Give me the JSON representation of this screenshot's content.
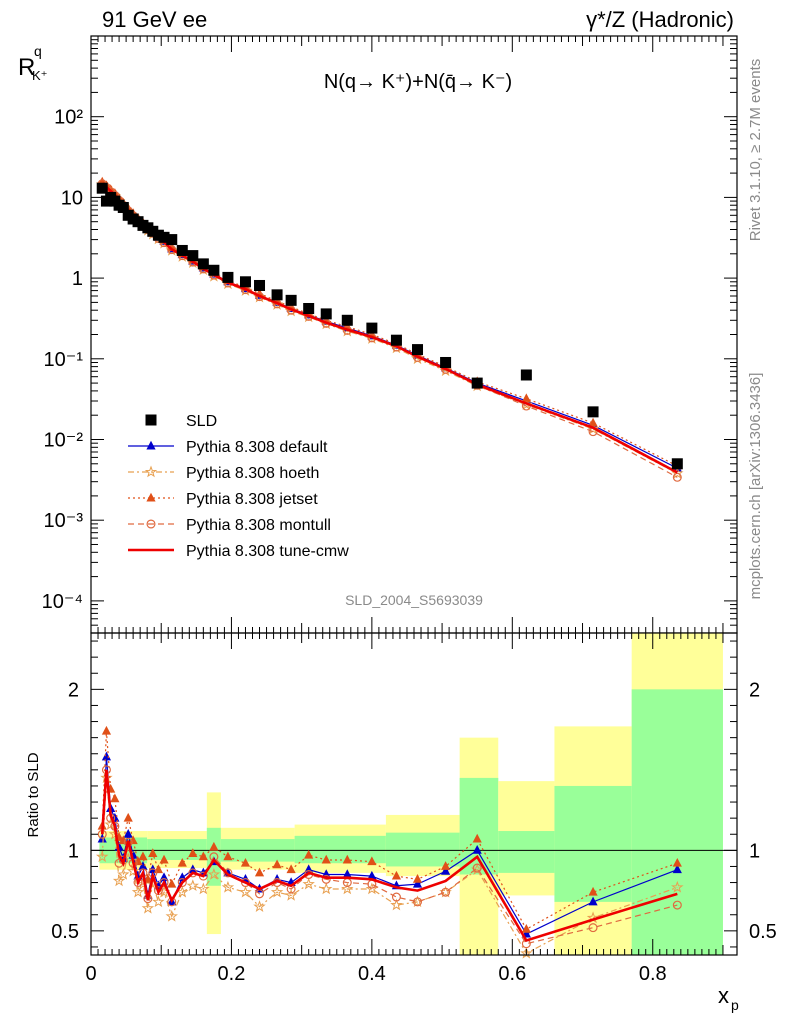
{
  "header": {
    "left": "91 GeV ee",
    "right": "γ*/Z (Hadronic)"
  },
  "side": {
    "rivet": "Rivet 3.1.10, ≥ 2.7M events",
    "source": "mcplots.cern.ch [arXiv:1306.3436]"
  },
  "chart_data": [
    {
      "type": "scatter",
      "panel": "main",
      "ylabel": "R",
      "ylabel_sup": "q",
      "ylabel_sub": "K⁺",
      "annotation": "N(q→ K⁺)+N(q̄→ K⁻)",
      "watermark": "SLD_2004_S5693039",
      "yscale": "log",
      "ylim": [
        4e-05,
        1000
      ],
      "xlim": [
        0,
        0.92
      ],
      "y_ticklabels": [
        "10⁻⁴",
        "10⁻³",
        "10⁻²",
        "10⁻¹",
        "1",
        "10",
        "10²"
      ],
      "legend_position": "bottom-left",
      "x": [
        0.016,
        0.022,
        0.028,
        0.034,
        0.04,
        0.046,
        0.053,
        0.06,
        0.067,
        0.074,
        0.081,
        0.088,
        0.096,
        0.104,
        0.115,
        0.13,
        0.145,
        0.16,
        0.175,
        0.195,
        0.22,
        0.24,
        0.265,
        0.285,
        0.31,
        0.335,
        0.365,
        0.4,
        0.435,
        0.465,
        0.505,
        0.55,
        0.62,
        0.715,
        0.835
      ],
      "series": [
        {
          "name": "SLD",
          "color": "#000000",
          "marker": "square",
          "values": [
            13,
            9,
            10,
            9,
            8,
            7.5,
            6,
            5.4,
            5,
            4.5,
            4.2,
            3.8,
            3.4,
            3.2,
            3.0,
            2.2,
            1.9,
            1.5,
            1.25,
            1.02,
            0.9,
            0.81,
            0.62,
            0.53,
            0.42,
            0.36,
            0.3,
            0.24,
            0.17,
            0.13,
            0.09,
            0.05,
            0.063,
            0.022,
            0.005
          ]
        },
        {
          "name": "Pythia 8.308 default",
          "color": "#0000cc",
          "marker": "triangle",
          "dash": "",
          "values": [
            15,
            13.5,
            12,
            10.8,
            9.4,
            8.2,
            7.0,
            6.1,
            5.3,
            4.7,
            4.1,
            3.7,
            3.2,
            2.85,
            2.3,
            1.95,
            1.62,
            1.33,
            1.12,
            0.9,
            0.74,
            0.61,
            0.5,
            0.42,
            0.35,
            0.29,
            0.24,
            0.192,
            0.147,
            0.11,
            0.077,
            0.05,
            0.03,
            0.015,
            0.0044
          ]
        },
        {
          "name": "Pythia 8.308 hoeth",
          "color": "#e8a050",
          "marker": "star",
          "dash": "6,3,2,3",
          "values": [
            14.5,
            13,
            11.6,
            10.4,
            9.0,
            7.9,
            6.7,
            5.8,
            5.05,
            4.45,
            3.9,
            3.5,
            3.05,
            2.7,
            2.2,
            1.85,
            1.55,
            1.27,
            1.05,
            0.85,
            0.7,
            0.58,
            0.47,
            0.39,
            0.33,
            0.27,
            0.22,
            0.178,
            0.136,
            0.1,
            0.071,
            0.046,
            0.027,
            0.0135,
            0.0038
          ]
        },
        {
          "name": "Pythia 8.308 jetset",
          "color": "#e05018",
          "marker": "triangle",
          "dash": "2,3",
          "values": [
            15.5,
            14,
            12.5,
            11.2,
            9.7,
            8.5,
            7.3,
            6.3,
            5.5,
            4.85,
            4.25,
            3.8,
            3.3,
            2.95,
            2.4,
            2.0,
            1.68,
            1.38,
            1.16,
            0.93,
            0.77,
            0.64,
            0.52,
            0.44,
            0.36,
            0.3,
            0.25,
            0.2,
            0.153,
            0.114,
            0.08,
            0.052,
            0.032,
            0.016,
            0.0047
          ]
        },
        {
          "name": "Pythia 8.308 montull",
          "color": "#e06a40",
          "marker": "circle",
          "dash": "6,4",
          "values": [
            14.8,
            13.3,
            11.8,
            10.6,
            9.2,
            8.0,
            6.85,
            5.95,
            5.15,
            4.55,
            4.0,
            3.6,
            3.1,
            2.75,
            2.25,
            1.9,
            1.58,
            1.3,
            1.09,
            0.87,
            0.72,
            0.59,
            0.48,
            0.4,
            0.335,
            0.275,
            0.225,
            0.182,
            0.14,
            0.104,
            0.074,
            0.047,
            0.026,
            0.0125,
            0.0034
          ]
        },
        {
          "name": "Pythia 8.308 tune-cmw",
          "color": "#ee0000",
          "marker": "none",
          "dash": "",
          "width": 2.6,
          "values": [
            15,
            13.4,
            12,
            10.7,
            9.3,
            8.1,
            6.95,
            6.05,
            5.25,
            4.65,
            4.05,
            3.65,
            3.15,
            2.8,
            2.27,
            1.92,
            1.6,
            1.31,
            1.1,
            0.88,
            0.73,
            0.6,
            0.49,
            0.41,
            0.34,
            0.28,
            0.23,
            0.186,
            0.143,
            0.106,
            0.075,
            0.048,
            0.028,
            0.014,
            0.0039
          ]
        }
      ]
    },
    {
      "type": "line",
      "panel": "ratio",
      "ylabel": "Ratio to SLD",
      "xlabel": "x",
      "xlabel_sub": "p",
      "ylim": [
        0.35,
        2.35
      ],
      "y_ticklabels": [
        "0.5",
        "1",
        "2"
      ],
      "x_ticklabels": [
        "0",
        "0.2",
        "0.4",
        "0.6",
        "0.8"
      ],
      "x": [
        0.016,
        0.022,
        0.028,
        0.034,
        0.04,
        0.046,
        0.053,
        0.06,
        0.067,
        0.074,
        0.081,
        0.088,
        0.096,
        0.104,
        0.115,
        0.13,
        0.145,
        0.16,
        0.175,
        0.195,
        0.22,
        0.24,
        0.265,
        0.285,
        0.31,
        0.335,
        0.365,
        0.4,
        0.435,
        0.465,
        0.505,
        0.55,
        0.62,
        0.715,
        0.835
      ],
      "bands": [
        {
          "x0": 0.012,
          "x1": 0.08,
          "stat_lo": 0.92,
          "stat_hi": 1.08,
          "tot_lo": 0.88,
          "tot_hi": 1.12
        },
        {
          "x0": 0.08,
          "x1": 0.165,
          "stat_lo": 0.94,
          "stat_hi": 1.07,
          "tot_lo": 0.89,
          "tot_hi": 1.12
        },
        {
          "x0": 0.165,
          "x1": 0.185,
          "stat_lo": 0.78,
          "stat_hi": 1.14,
          "tot_lo": 0.48,
          "tot_hi": 1.36
        },
        {
          "x0": 0.185,
          "x1": 0.29,
          "stat_lo": 0.93,
          "stat_hi": 1.07,
          "tot_lo": 0.88,
          "tot_hi": 1.14
        },
        {
          "x0": 0.29,
          "x1": 0.42,
          "stat_lo": 0.92,
          "stat_hi": 1.09,
          "tot_lo": 0.86,
          "tot_hi": 1.16
        },
        {
          "x0": 0.42,
          "x1": 0.525,
          "stat_lo": 0.9,
          "stat_hi": 1.11,
          "tot_lo": 0.84,
          "tot_hi": 1.22
        },
        {
          "x0": 0.525,
          "x1": 0.58,
          "stat_lo": 0.85,
          "stat_hi": 1.45,
          "tot_lo": 0.35,
          "tot_hi": 1.7
        },
        {
          "x0": 0.58,
          "x1": 0.66,
          "stat_lo": 0.86,
          "stat_hi": 1.12,
          "tot_lo": 0.72,
          "tot_hi": 1.43
        },
        {
          "x0": 0.66,
          "x1": 0.77,
          "stat_lo": 0.68,
          "stat_hi": 1.4,
          "tot_lo": 0.35,
          "tot_hi": 1.77
        },
        {
          "x0": 0.77,
          "x1": 0.9,
          "stat_lo": 0.35,
          "stat_hi": 2.0,
          "tot_lo": 0.35,
          "tot_hi": 2.35
        }
      ],
      "series": [
        {
          "name": "Pythia 8.308 default",
          "color": "#0000cc",
          "marker": "triangle",
          "dash": "",
          "values": [
            1.07,
            1.58,
            1.26,
            1.2,
            1.02,
            0.95,
            1.1,
            0.97,
            0.84,
            0.9,
            0.72,
            0.88,
            0.78,
            0.83,
            0.68,
            0.83,
            0.88,
            0.86,
            0.93,
            0.86,
            0.82,
            0.76,
            0.82,
            0.8,
            0.88,
            0.85,
            0.85,
            0.84,
            0.78,
            0.79,
            0.87,
            1.0,
            0.48,
            0.68,
            0.88
          ]
        },
        {
          "name": "Pythia 8.308 hoeth",
          "color": "#e8a050",
          "marker": "star",
          "dash": "6,3,2,3",
          "values": [
            0.96,
            1.45,
            1.16,
            1.1,
            0.81,
            0.85,
            0.98,
            0.87,
            0.74,
            0.79,
            0.64,
            0.79,
            0.68,
            0.74,
            0.59,
            0.74,
            0.78,
            0.76,
            0.85,
            0.77,
            0.74,
            0.65,
            0.74,
            0.72,
            0.79,
            0.76,
            0.76,
            0.76,
            0.66,
            0.68,
            0.74,
            0.88,
            0.36,
            0.58,
            0.77
          ]
        },
        {
          "name": "Pythia 8.308 jetset",
          "color": "#e05018",
          "marker": "triangle",
          "dash": "2,3",
          "values": [
            1.15,
            1.74,
            1.38,
            1.32,
            1.08,
            1.06,
            1.2,
            1.06,
            0.93,
            0.96,
            0.82,
            0.98,
            0.88,
            0.94,
            0.79,
            0.92,
            0.98,
            0.96,
            1.02,
            0.96,
            0.92,
            0.86,
            0.91,
            0.88,
            0.97,
            0.94,
            0.94,
            0.93,
            0.84,
            0.82,
            0.9,
            1.07,
            0.51,
            0.74,
            0.92
          ]
        },
        {
          "name": "Pythia 8.308 montull",
          "color": "#e06a40",
          "marker": "circle",
          "dash": "6,4",
          "values": [
            1.1,
            1.5,
            1.2,
            1.15,
            0.92,
            0.94,
            1.05,
            0.92,
            0.8,
            0.86,
            0.7,
            0.86,
            0.75,
            0.8,
            0.68,
            0.8,
            0.86,
            0.84,
            0.96,
            0.86,
            0.8,
            0.73,
            0.8,
            0.76,
            0.85,
            0.82,
            0.8,
            0.79,
            0.71,
            0.68,
            0.74,
            0.89,
            0.42,
            0.52,
            0.66
          ]
        },
        {
          "name": "Pythia 8.308 tune-cmw",
          "color": "#ee0000",
          "marker": "none",
          "dash": "",
          "width": 2.6,
          "values": [
            1.1,
            1.5,
            1.22,
            1.15,
            0.97,
            0.92,
            1.06,
            0.93,
            0.8,
            0.86,
            0.69,
            0.84,
            0.74,
            0.8,
            0.69,
            0.8,
            0.86,
            0.84,
            0.94,
            0.85,
            0.8,
            0.76,
            0.81,
            0.78,
            0.86,
            0.83,
            0.83,
            0.82,
            0.77,
            0.75,
            0.81,
            0.96,
            0.44,
            0.57,
            0.73
          ]
        }
      ]
    }
  ]
}
